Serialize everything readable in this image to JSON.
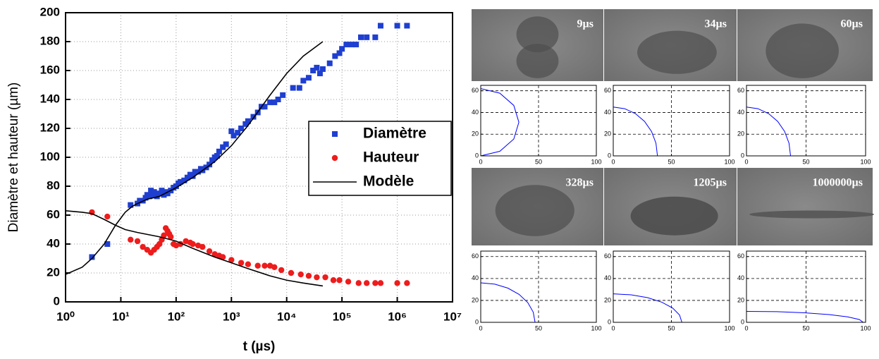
{
  "chart_data": [
    {
      "type": "scatter",
      "xlabel": "t (µs)",
      "ylabel": "Diamètre et hauteur (µm)",
      "xlog": true,
      "grid": true,
      "legend": "right",
      "xlim": [
        1,
        10000000
      ],
      "ylim": [
        0,
        200
      ],
      "xticks": [
        {
          "value": 1,
          "label": "10⁰"
        },
        {
          "value": 10,
          "label": "10¹"
        },
        {
          "value": 100,
          "label": "10²"
        },
        {
          "value": 1000,
          "label": "10³"
        },
        {
          "value": 10000,
          "label": "10⁴"
        },
        {
          "value": 100000,
          "label": "10⁵"
        },
        {
          "value": 1000000,
          "label": "10⁶"
        },
        {
          "value": 10000000,
          "label": "10⁷"
        }
      ],
      "yticks": [
        0,
        20,
        40,
        60,
        80,
        100,
        120,
        140,
        160,
        180,
        200
      ],
      "series": [
        {
          "name": "Diamètre",
          "color": "#1f3fd0",
          "marker": "square",
          "x": [
            3,
            5.7,
            15,
            20,
            22,
            25,
            28,
            30,
            33,
            35,
            38,
            40,
            45,
            50,
            55,
            60,
            65,
            70,
            80,
            90,
            100,
            110,
            120,
            140,
            160,
            180,
            200,
            220,
            250,
            280,
            300,
            350,
            400,
            450,
            500,
            550,
            600,
            700,
            800,
            1000,
            1100,
            1300,
            1500,
            1800,
            2000,
            2500,
            3000,
            3500,
            4000,
            5000,
            6000,
            7000,
            8500,
            13000,
            17000,
            20000,
            25000,
            30000,
            35000,
            40000,
            45000,
            60000,
            75000,
            90000,
            100000,
            120000,
            150000,
            180000,
            220000,
            280000,
            400000,
            500000,
            1000000,
            1500000
          ],
          "values": [
            31,
            40,
            67,
            68,
            70,
            70,
            72,
            74,
            73,
            77,
            74,
            76,
            73,
            75,
            77,
            74,
            76,
            75,
            77,
            79,
            80,
            82,
            83,
            84,
            86,
            88,
            87,
            90,
            90,
            92,
            91,
            93,
            95,
            98,
            100,
            101,
            104,
            107,
            109,
            118,
            115,
            117,
            120,
            123,
            125,
            128,
            131,
            135,
            135,
            138,
            138,
            140,
            143,
            148,
            148,
            153,
            155,
            160,
            162,
            158,
            161,
            165,
            170,
            172,
            175,
            178,
            178,
            178,
            183,
            183,
            183,
            191,
            191,
            191
          ]
        },
        {
          "name": "Hauteur",
          "color": "#ee1c1c",
          "marker": "circle",
          "x": [
            3,
            5.7,
            15,
            20,
            25,
            30,
            35,
            40,
            45,
            50,
            55,
            60,
            65,
            70,
            75,
            80,
            90,
            100,
            120,
            150,
            180,
            200,
            250,
            300,
            400,
            500,
            600,
            700,
            1000,
            1500,
            2000,
            3000,
            4000,
            5000,
            6000,
            8000,
            12000,
            18000,
            25000,
            35000,
            50000,
            70000,
            90000,
            130000,
            200000,
            280000,
            400000,
            500000,
            1000000,
            1500000
          ],
          "values": [
            62,
            59,
            43,
            42,
            38,
            36,
            34,
            36,
            38,
            40,
            43,
            46,
            51,
            49,
            47,
            45,
            40,
            39,
            40,
            42,
            41,
            40,
            39,
            38,
            35,
            33,
            32,
            31,
            29,
            27,
            26,
            25,
            25,
            25,
            24,
            22,
            20,
            19,
            18,
            17,
            17,
            15,
            15,
            14,
            13,
            13,
            13,
            13,
            13,
            13
          ]
        },
        {
          "name": "Modèle",
          "color": "#000000",
          "marker": "line",
          "x": [
            1,
            2,
            3,
            5,
            8,
            12,
            16,
            20,
            30,
            50,
            100,
            200,
            500,
            1000,
            2000,
            5000,
            10000,
            20000,
            45000,
            null,
            1,
            2,
            3,
            5,
            8,
            12,
            20,
            50,
            100,
            200,
            500,
            1000,
            2000,
            5000,
            10000,
            20000,
            45000
          ],
          "values": [
            19,
            24,
            30,
            40,
            53,
            62,
            66,
            68,
            71,
            73,
            79,
            86,
            97,
            108,
            122,
            143,
            158,
            170,
            180,
            null,
            63,
            62,
            61,
            57,
            53,
            50,
            48,
            45,
            42,
            37,
            31,
            27,
            23,
            18,
            15,
            13,
            11
          ]
        }
      ]
    },
    {
      "type": "line",
      "color": "#0000ff",
      "grid": true,
      "xlim": [
        0,
        100
      ],
      "ylim": [
        0,
        65
      ],
      "xticks": [
        0,
        50,
        100
      ],
      "yticks": [
        0,
        20,
        40,
        60
      ],
      "x": [
        0,
        16.5,
        28.6,
        33,
        28.6,
        16.5,
        0
      ],
      "values": [
        62,
        57.8,
        46.5,
        31,
        15.5,
        4.2,
        0
      ]
    },
    {
      "type": "line",
      "color": "#0000ff",
      "grid": true,
      "xlim": [
        0,
        100
      ],
      "ylim": [
        0,
        65
      ],
      "xticks": [
        0,
        50,
        100
      ],
      "yticks": [
        0,
        20,
        40,
        60
      ],
      "x": [
        0,
        9.8,
        19,
        26.9,
        32.9,
        36.7,
        38
      ],
      "values": [
        45,
        43.5,
        39,
        31.8,
        22.5,
        11.7,
        0
      ]
    },
    {
      "type": "line",
      "color": "#0000ff",
      "grid": true,
      "xlim": [
        0,
        100
      ],
      "ylim": [
        0,
        65
      ],
      "xticks": [
        0,
        50,
        100
      ],
      "yticks": [
        0,
        20,
        40,
        60
      ],
      "x": [
        0,
        9.6,
        18.5,
        26.2,
        32,
        35.7,
        37
      ],
      "values": [
        45,
        43.5,
        39,
        31.8,
        22.5,
        11.7,
        0
      ]
    },
    {
      "type": "line",
      "color": "#0000ff",
      "grid": true,
      "xlim": [
        0,
        100
      ],
      "ylim": [
        0,
        65
      ],
      "xticks": [
        0,
        50,
        100
      ],
      "yticks": [
        0,
        20,
        40,
        60
      ],
      "x": [
        0,
        12.2,
        23.5,
        33.2,
        40.7,
        45.4,
        47
      ],
      "values": [
        36,
        34.8,
        31.2,
        25.5,
        18,
        9.3,
        0
      ]
    },
    {
      "type": "line",
      "color": "#0000ff",
      "grid": true,
      "xlim": [
        0,
        100
      ],
      "ylim": [
        0,
        65
      ],
      "xticks": [
        0,
        50,
        100
      ],
      "yticks": [
        0,
        20,
        40,
        60
      ],
      "x": [
        0,
        15.3,
        29.5,
        41.7,
        51.1,
        57,
        59
      ],
      "values": [
        26,
        25.1,
        22.5,
        18.4,
        13,
        6.7,
        0
      ]
    },
    {
      "type": "line",
      "color": "#0000ff",
      "grid": true,
      "xlim": [
        0,
        100
      ],
      "ylim": [
        0,
        65
      ],
      "xticks": [
        0,
        50,
        100
      ],
      "yticks": [
        0,
        20,
        40,
        60
      ],
      "x": [
        0,
        25.4,
        49,
        69.3,
        84.9,
        94.7,
        98
      ],
      "values": [
        10,
        9.7,
        8.7,
        7.1,
        5,
        2.6,
        0
      ]
    }
  ],
  "photos": [
    {
      "label": "9µs"
    },
    {
      "label": "34µs"
    },
    {
      "label": "60µs"
    },
    {
      "label": "328µs"
    },
    {
      "label": "1205µs"
    },
    {
      "label": "1000000µs"
    }
  ]
}
